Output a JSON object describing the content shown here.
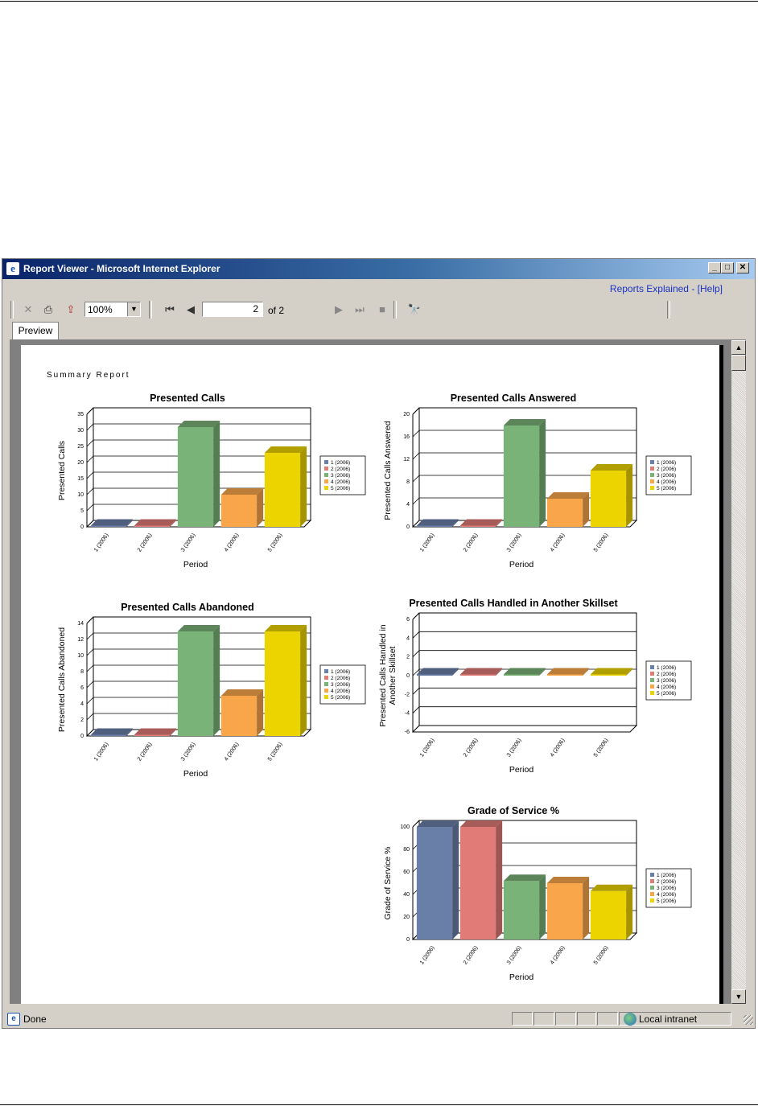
{
  "window": {
    "title": "Report Viewer - Microsoft Internet Explorer",
    "help_link": "Reports Explained - [Help]"
  },
  "toolbar": {
    "zoom": "100%",
    "page_current": "2",
    "page_of": "of 2"
  },
  "tabs": {
    "preview": "Preview"
  },
  "status": {
    "text": "Done",
    "zone": "Local intranet"
  },
  "report": {
    "heading": "Summary Report"
  },
  "legend": [
    "1 (2006)",
    "2 (2006)",
    "3 (2006)",
    "4 (2006)",
    "5 (2006)"
  ],
  "colors": [
    "#6a7fa8",
    "#e07b77",
    "#7ab377",
    "#f9a64b",
    "#ecd400"
  ],
  "chart_data": [
    {
      "type": "bar",
      "title": "Presented Calls",
      "xlabel": "Period",
      "ylabel": "Presented Calls",
      "categories": [
        "1 (2006)",
        "2 (2006)",
        "3 (2006)",
        "4 (2006)",
        "5 (2006)"
      ],
      "values": [
        0,
        0,
        31,
        10,
        23
      ],
      "ylim": [
        0,
        35
      ],
      "yticks": [
        0,
        5,
        10,
        15,
        20,
        25,
        30,
        35
      ]
    },
    {
      "type": "bar",
      "title": "Presented Calls Answered",
      "xlabel": "Period",
      "ylabel": "Presented Calls Answered",
      "categories": [
        "1 (2006)",
        "2 (2006)",
        "3 (2006)",
        "4 (2006)",
        "5 (2006)"
      ],
      "values": [
        0,
        0,
        18,
        5,
        10
      ],
      "ylim": [
        0,
        20
      ],
      "yticks": [
        0,
        4,
        8,
        12,
        16,
        20
      ]
    },
    {
      "type": "bar",
      "title": "Presented Calls Abandoned",
      "xlabel": "Period",
      "ylabel": "Presented Calls Abandoned",
      "categories": [
        "1 (2006)",
        "2 (2006)",
        "3 (2006)",
        "4 (2006)",
        "5 (2006)"
      ],
      "values": [
        0,
        0,
        13,
        5,
        13
      ],
      "ylim": [
        0,
        14
      ],
      "yticks": [
        0,
        2,
        4,
        6,
        8,
        10,
        12,
        14
      ]
    },
    {
      "type": "bar",
      "title": "Presented Calls Handled in Another Skillset",
      "xlabel": "Period",
      "ylabel": "Presented Calls Handled in Another Skillset",
      "categories": [
        "1 (2006)",
        "2 (2006)",
        "3 (2006)",
        "4 (2006)",
        "5 (2006)"
      ],
      "values": [
        0,
        0,
        0,
        0,
        0
      ],
      "ylim": [
        -6,
        6
      ],
      "yticks": [
        -6,
        -4,
        -2,
        0,
        2,
        4,
        6
      ]
    },
    {
      "type": "bar",
      "title": "Grade of Service %",
      "xlabel": "Period",
      "ylabel": "Grade of Service %",
      "categories": [
        "1 (2006)",
        "2 (2006)",
        "3 (2006)",
        "4 (2006)",
        "5 (2006)"
      ],
      "values": [
        100,
        100,
        52,
        50,
        43
      ],
      "ylim": [
        0,
        100
      ],
      "yticks": [
        0,
        20,
        40,
        60,
        80,
        100
      ]
    }
  ]
}
